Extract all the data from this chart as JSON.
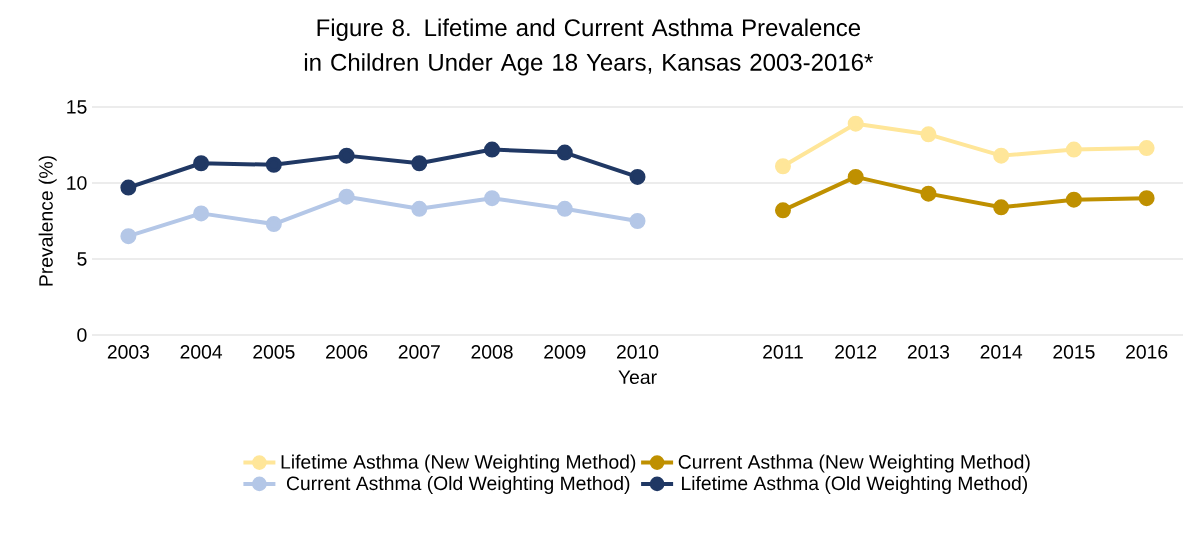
{
  "chart_data": {
    "type": "line",
    "title": "Figure 8. Lifetime and Current Asthma Prevalence in Children Under Age 18 Years, Kansas 2003-2016*",
    "xlabel": "Year",
    "ylabel": "Prevalence (%)",
    "categories": [
      "2003",
      "2004",
      "2005",
      "2006",
      "2007",
      "2008",
      "2009",
      "2010",
      null,
      "2011",
      "2012",
      "2013",
      "2014",
      "2015",
      "2016"
    ],
    "series": [
      {
        "name": "Lifetime Asthma (New Weighting Method)",
        "color": "#ffe699",
        "values": [
          null,
          null,
          null,
          null,
          null,
          null,
          null,
          null,
          null,
          11.1,
          13.9,
          13.2,
          11.8,
          12.2,
          12.3
        ]
      },
      {
        "name": "Current Asthma (New Weighting Method)",
        "color": "#bf9000",
        "values": [
          null,
          null,
          null,
          null,
          null,
          null,
          null,
          null,
          null,
          8.2,
          10.4,
          9.3,
          8.4,
          8.9,
          9.0
        ]
      },
      {
        "name": "Current Asthma (Old Weighting Method)",
        "color": "#b4c7e7",
        "values": [
          6.5,
          8.0,
          7.3,
          9.1,
          8.3,
          9.0,
          8.3,
          7.5,
          null,
          null,
          null,
          null,
          null,
          null,
          null
        ]
      },
      {
        "name": "Lifetime Asthma (Old Weighting Method)",
        "color": "#203864",
        "values": [
          9.7,
          11.3,
          11.2,
          11.8,
          11.3,
          12.2,
          12.0,
          10.4,
          null,
          null,
          null,
          null,
          null,
          null,
          null
        ]
      }
    ],
    "ylim": [
      0,
      15
    ],
    "yticks": [
      0,
      5,
      10,
      15
    ],
    "grid": "y",
    "legend": "bottom",
    "marker": "circle",
    "line_style": "solid"
  }
}
